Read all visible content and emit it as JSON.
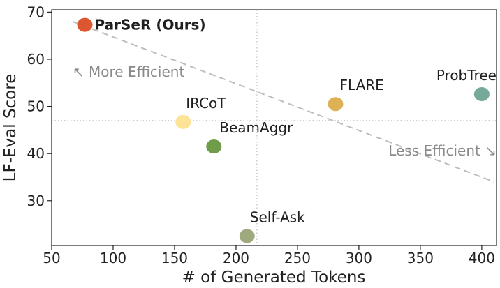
{
  "chart_data": {
    "type": "scatter",
    "xlabel": "# of Generated Tokens",
    "ylabel": "LF-Eval Score",
    "xlim": [
      50,
      412
    ],
    "ylim": [
      20.5,
      70.5
    ],
    "xticks": [
      50,
      100,
      150,
      200,
      250,
      300,
      350,
      400
    ],
    "yticks": [
      30,
      40,
      50,
      60,
      70
    ],
    "grid": false,
    "reference_lines": {
      "x": 217,
      "y": 47
    },
    "trend_line": {
      "from": [
        67,
        68
      ],
      "to": [
        410,
        34
      ]
    },
    "annotations": [
      {
        "text": "↖ More Efficient",
        "x": 67,
        "y": 56.3
      },
      {
        "text": "Less Efficient ↘",
        "x": 412,
        "y": 39.6
      }
    ],
    "points": [
      {
        "label": "ParSeR (Ours)",
        "x": 77,
        "y": 67.3,
        "color": "#dc5730",
        "bold": true
      },
      {
        "label": "IRCoT",
        "x": 157,
        "y": 46.7,
        "color": "#fde396",
        "bold": false
      },
      {
        "label": "BeamAggr",
        "x": 182,
        "y": 41.5,
        "color": "#6e9c48",
        "bold": false
      },
      {
        "label": "Self-Ask",
        "x": 209,
        "y": 22.5,
        "color": "#9eaa7e",
        "bold": false
      },
      {
        "label": "FLARE",
        "x": 281,
        "y": 50.5,
        "color": "#ddb155",
        "bold": false
      },
      {
        "label": "ProbTree",
        "x": 400,
        "y": 52.6,
        "color": "#77a99b",
        "bold": false
      }
    ]
  }
}
